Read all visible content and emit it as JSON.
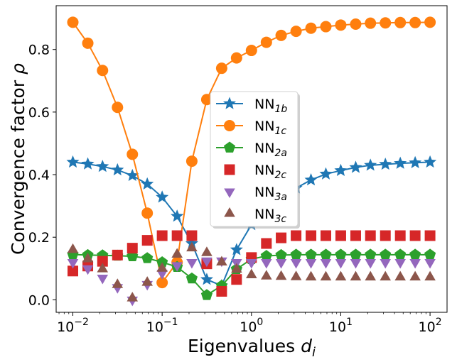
{
  "chart_data": {
    "type": "line",
    "xscale": "log",
    "xlim": [
      0.0065,
      155
    ],
    "ylim": [
      -0.04,
      0.94
    ],
    "x_ticks": [
      0.01,
      0.1,
      1,
      10,
      100
    ],
    "y_ticks": [
      0.0,
      0.2,
      0.4,
      0.6,
      0.8
    ],
    "x_tick_labels": [
      {
        "base": "10",
        "exp": "−2"
      },
      {
        "base": "10",
        "exp": "−1"
      },
      {
        "base": "10",
        "exp": "0"
      },
      {
        "base": "10",
        "exp": "1"
      },
      {
        "base": "10",
        "exp": "2"
      }
    ],
    "y_tick_labels": [
      "0.0",
      "0.2",
      "0.4",
      "0.6",
      "0.8"
    ],
    "xlabel": {
      "text": "Eigenvalues ",
      "var": "d",
      "sub": "i"
    },
    "ylabel": {
      "text": "Convergence factor ",
      "var": "ρ"
    },
    "grid": false,
    "legend_position": "center",
    "x": [
      0.01,
      0.0147,
      0.0215,
      0.0316,
      0.0464,
      0.0681,
      0.1,
      0.147,
      0.215,
      0.316,
      0.464,
      0.681,
      1.0,
      1.47,
      2.15,
      3.16,
      4.64,
      6.81,
      10.0,
      14.7,
      21.5,
      31.6,
      46.4,
      68.1,
      100.0
    ],
    "series": [
      {
        "name": "NN",
        "sub": "1b",
        "color": "#1f77b4",
        "marker": "star",
        "line": true,
        "values": [
          0.44,
          0.434,
          0.426,
          0.415,
          0.397,
          0.37,
          0.328,
          0.267,
          0.18,
          0.065,
          0.045,
          0.16,
          0.24,
          0.3,
          0.33,
          0.357,
          0.383,
          0.402,
          0.413,
          0.423,
          0.43,
          0.433,
          0.436,
          0.438,
          0.44
        ]
      },
      {
        "name": "NN",
        "sub": "1c",
        "color": "#ff7f0e",
        "marker": "circle",
        "line": true,
        "values": [
          0.887,
          0.82,
          0.733,
          0.615,
          0.465,
          0.277,
          0.055,
          0.12,
          0.443,
          0.64,
          0.74,
          0.773,
          0.797,
          0.823,
          0.845,
          0.858,
          0.868,
          0.873,
          0.878,
          0.881,
          0.884,
          0.885,
          0.886,
          0.886,
          0.887
        ]
      },
      {
        "name": "NN",
        "sub": "2a",
        "color": "#2ca02c",
        "marker": "pentagon",
        "line": true,
        "values": [
          0.145,
          0.143,
          0.142,
          0.141,
          0.139,
          0.133,
          0.12,
          0.105,
          0.068,
          0.015,
          0.045,
          0.098,
          0.13,
          0.14,
          0.143,
          0.144,
          0.144,
          0.144,
          0.144,
          0.144,
          0.144,
          0.144,
          0.144,
          0.144,
          0.144
        ]
      },
      {
        "name": "NN",
        "sub": "2c",
        "color": "#d62728",
        "marker": "square",
        "line": false,
        "values": [
          0.092,
          0.108,
          0.123,
          0.143,
          0.165,
          0.19,
          0.205,
          0.205,
          0.205,
          0.115,
          0.027,
          0.065,
          0.135,
          0.18,
          0.198,
          0.205,
          0.205,
          0.205,
          0.205,
          0.205,
          0.205,
          0.205,
          0.205,
          0.205,
          0.205
        ]
      },
      {
        "name": "NN",
        "sub": "3a",
        "color": "#9467bd",
        "marker": "triangle-down",
        "line": false,
        "values": [
          0.12,
          0.1,
          0.07,
          0.04,
          0.0,
          0.05,
          0.085,
          0.11,
          0.12,
          0.125,
          0.125,
          0.12,
          0.12,
          0.12,
          0.12,
          0.12,
          0.12,
          0.12,
          0.12,
          0.12,
          0.12,
          0.12,
          0.12,
          0.12,
          0.12
        ]
      },
      {
        "name": "NN",
        "sub": "3c",
        "color": "#8c564b",
        "marker": "triangle-up",
        "line": false,
        "values": [
          0.16,
          0.13,
          0.098,
          0.048,
          0.005,
          0.055,
          0.1,
          0.145,
          0.165,
          0.15,
          0.12,
          0.097,
          0.079,
          0.075,
          0.074,
          0.073,
          0.072,
          0.072,
          0.072,
          0.072,
          0.072,
          0.072,
          0.072,
          0.072,
          0.072
        ]
      }
    ]
  }
}
